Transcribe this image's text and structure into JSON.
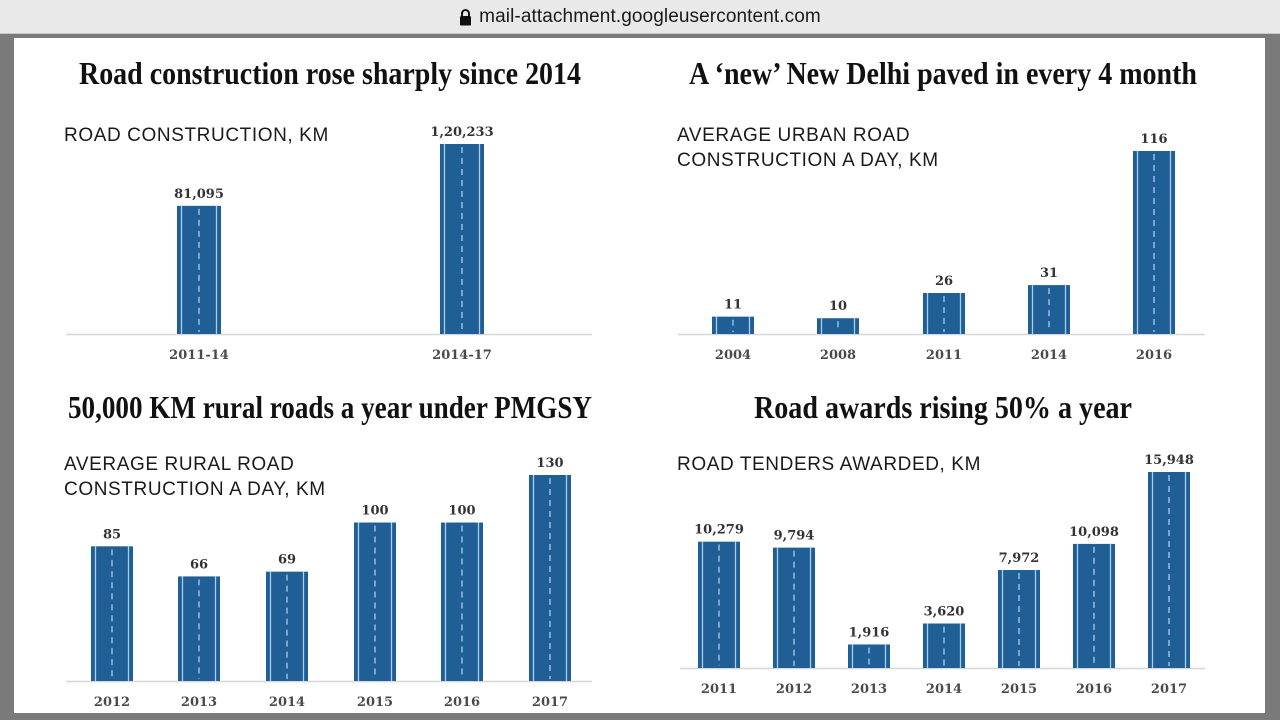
{
  "browser": {
    "url": "mail-attachment.googleusercontent.com",
    "lock_icon": "lock-icon"
  },
  "style": {
    "bar_color": "#1f5f96",
    "lane_color": "#a9cdef",
    "axis_color": "#d6d6d6",
    "frame_color": "#7a7a7a",
    "urlbar_color": "#e9e9e9"
  },
  "chart_data": [
    {
      "id": "road-construction",
      "type": "bar",
      "title": "Road construction rose sharply since 2014",
      "subtitle_lines": [
        "ROAD CONSTRUCTION, KM"
      ],
      "xlabel": "",
      "ylabel": "Road construction, KM",
      "categories": [
        "2011-14",
        "2014-17"
      ],
      "values": [
        81095,
        120233
      ],
      "value_labels": [
        "81,095",
        "1,20,233"
      ],
      "ylim": [
        0,
        125000
      ],
      "grid": false,
      "legend": "none"
    },
    {
      "id": "urban-road",
      "type": "bar",
      "title": "A ‘new’ New Delhi paved in every 4 month",
      "subtitle_lines": [
        "AVERAGE URBAN ROAD",
        "CONSTRUCTION A DAY, KM"
      ],
      "xlabel": "",
      "ylabel": "Average urban road construction a day, KM",
      "categories": [
        "2004",
        "2008",
        "2011",
        "2014",
        "2016"
      ],
      "values": [
        11,
        10,
        26,
        31,
        116
      ],
      "value_labels": [
        "11",
        "10",
        "26",
        "31",
        "116"
      ],
      "ylim": [
        0,
        120
      ],
      "grid": false,
      "legend": "none"
    },
    {
      "id": "rural-road",
      "type": "bar",
      "title": "50,000 KM rural roads a year under PMGSY",
      "subtitle_lines": [
        "AVERAGE RURAL ROAD",
        "CONSTRUCTION A DAY, KM"
      ],
      "xlabel": "",
      "ylabel": "Average rural road construction a day, KM",
      "categories": [
        "2012",
        "2013",
        "2014",
        "2015",
        "2016",
        "2017"
      ],
      "values": [
        85,
        66,
        69,
        100,
        100,
        130
      ],
      "value_labels": [
        "85",
        "66",
        "69",
        "100",
        "100",
        "130"
      ],
      "ylim": [
        0,
        135
      ],
      "grid": false,
      "legend": "none"
    },
    {
      "id": "road-awards",
      "type": "bar",
      "title": "Road awards rising 50% a year",
      "subtitle_lines": [
        "ROAD TENDERS AWARDED, KM"
      ],
      "xlabel": "",
      "ylabel": "Road tenders awarded, KM",
      "categories": [
        "2011",
        "2012",
        "2013",
        "2014",
        "2015",
        "2016",
        "2017"
      ],
      "values": [
        10279,
        9794,
        1916,
        3620,
        7972,
        10098,
        15948
      ],
      "value_labels": [
        "10,279",
        "9,794",
        "1,916",
        "3,620",
        "7,972",
        "10,098",
        "15,948"
      ],
      "ylim": [
        0,
        16500
      ],
      "grid": false,
      "legend": "none"
    }
  ]
}
